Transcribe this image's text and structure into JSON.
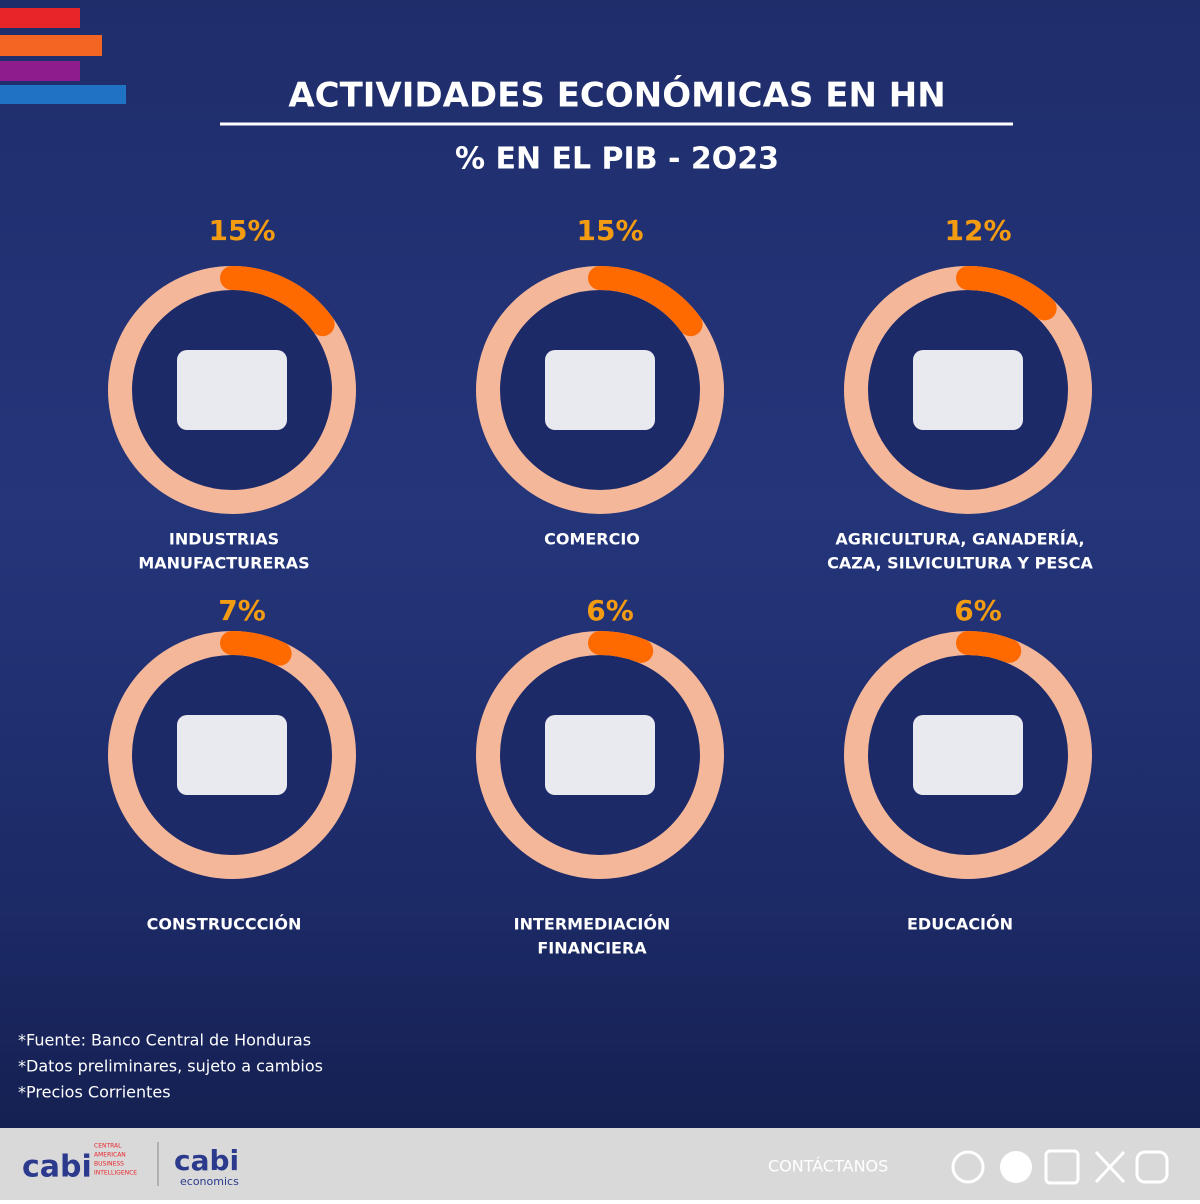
{
  "header": {
    "title": "ACTIVIDADES ECONÓMICAS EN HN",
    "subtitle": "% EN EL PIB - 2O23"
  },
  "items": [
    {
      "value": 15,
      "value_label": "15%",
      "label": [
        "INDUSTRIAS",
        "MANUFACTURERAS"
      ]
    },
    {
      "value": 15,
      "value_label": "15%",
      "label": [
        "COMERCIO"
      ]
    },
    {
      "value": 12,
      "value_label": "12%",
      "label": [
        "AGRICULTURA, GANADERÍA,",
        "CAZA, SILVICULTURA Y PESCA"
      ]
    },
    {
      "value": 7,
      "value_label": "7%",
      "label": [
        "CONSTRUCCCIÓN"
      ]
    },
    {
      "value": 6,
      "value_label": "6%",
      "label": [
        "INTERMEDIACIÓN",
        "FINANCIERA"
      ]
    },
    {
      "value": 6,
      "value_label": "6%",
      "label": [
        "EDUCACIÓN"
      ]
    }
  ],
  "notes": [
    "*Fuente: Banco Central de Honduras",
    "*Datos preliminares, sujeto a cambios",
    "*Precios Corrientes"
  ],
  "footer": {
    "logo": "cabi",
    "logo_tagline": [
      "CENTRAL",
      "AMERICAN",
      "BUSINESS",
      "INTELLIGENCE"
    ],
    "logo2": "cabi",
    "logo2_sub": "economics",
    "contact": "CONTÁCTANOS"
  }
}
